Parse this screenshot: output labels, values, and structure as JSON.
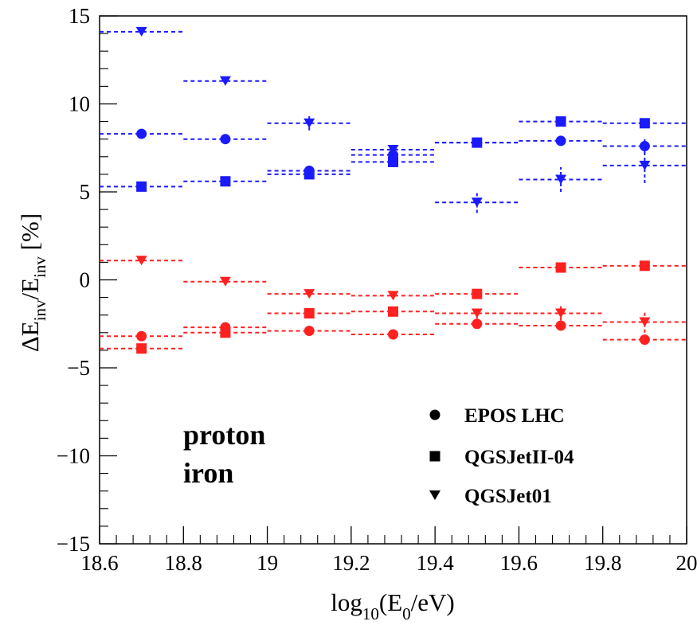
{
  "chart_data": {
    "type": "scatter",
    "title": "",
    "xlabel": {
      "main": "log",
      "sub1": "10",
      "mid": "(E",
      "sub2": "0",
      "end": "/eV)"
    },
    "ylabel": {
      "delta": "ΔE",
      "sub1": "inv",
      "slash": "/E",
      "sub2": "inv",
      "unit": " [%]"
    },
    "xlim": [
      18.6,
      20.0
    ],
    "ylim": [
      -15,
      15
    ],
    "x_ticks": [
      18.6,
      18.8,
      19.0,
      19.2,
      19.4,
      19.6,
      19.8,
      20.0
    ],
    "x_tick_labels": [
      "18.6",
      "18.8",
      "19",
      "19.2",
      "19.4",
      "19.6",
      "19.8",
      "20"
    ],
    "y_ticks": [
      -15,
      -10,
      -5,
      0,
      5,
      10,
      15
    ],
    "y_tick_labels": [
      "−15",
      "−10",
      "−5",
      "0",
      "5",
      "10",
      "15"
    ],
    "grid": false,
    "legend": {
      "placement": "bottom-right",
      "entries": [
        {
          "label": "EPOS LHC",
          "marker": "circle"
        },
        {
          "label": "QGSJetII-04",
          "marker": "square"
        },
        {
          "label": "QGSJet01",
          "marker": "triangle-down"
        }
      ]
    },
    "group_labels": [
      {
        "text": "proton",
        "color": "#1a1aff"
      },
      {
        "text": "iron",
        "color": "#ff2020"
      }
    ],
    "colors": {
      "proton": "#1a1aff",
      "iron": "#ff2020"
    },
    "bin_edges": [
      [
        18.6,
        18.8
      ],
      [
        18.8,
        19.0
      ],
      [
        19.0,
        19.2
      ],
      [
        19.2,
        19.4
      ],
      [
        19.4,
        19.6
      ],
      [
        19.6,
        19.8
      ],
      [
        19.8,
        20.0
      ]
    ],
    "x": [
      18.7,
      18.9,
      19.1,
      19.3,
      19.5,
      19.7,
      19.9
    ],
    "series": [
      {
        "primary": "proton",
        "model": "EPOS LHC",
        "marker": "circle",
        "values": [
          8.3,
          8.0,
          6.2,
          7.1,
          7.8,
          7.9,
          7.6
        ],
        "errors": [
          0.2,
          0.2,
          0.2,
          0.2,
          0.2,
          0.2,
          0.4
        ]
      },
      {
        "primary": "proton",
        "model": "QGSJetII-04",
        "marker": "square",
        "values": [
          5.3,
          5.6,
          6.0,
          6.7,
          7.8,
          9.0,
          8.9
        ],
        "errors": [
          0.2,
          0.2,
          0.2,
          0.3,
          0.2,
          0.2,
          0.2
        ]
      },
      {
        "primary": "proton",
        "model": "QGSJet01",
        "marker": "triangle-down",
        "values": [
          14.1,
          11.3,
          8.9,
          7.4,
          4.4,
          5.7,
          6.5
        ],
        "errors": [
          0.2,
          0.2,
          0.4,
          0.3,
          0.6,
          0.7,
          1.0
        ]
      },
      {
        "primary": "iron",
        "model": "EPOS LHC",
        "marker": "circle",
        "values": [
          -3.2,
          -2.7,
          -2.9,
          -3.1,
          -2.5,
          -2.6,
          -3.4
        ],
        "errors": [
          0.2,
          0.2,
          0.2,
          0.2,
          0.2,
          0.2,
          0.2
        ]
      },
      {
        "primary": "iron",
        "model": "QGSJetII-04",
        "marker": "square",
        "values": [
          -3.9,
          -3.0,
          -1.9,
          -1.8,
          -0.8,
          0.7,
          0.8
        ],
        "errors": [
          0.2,
          0.2,
          0.2,
          0.2,
          0.2,
          0.2,
          0.2
        ]
      },
      {
        "primary": "iron",
        "model": "QGSJet01",
        "marker": "triangle-down",
        "values": [
          1.1,
          -0.1,
          -0.8,
          -0.9,
          -1.9,
          -1.9,
          -2.4
        ],
        "errors": [
          0.2,
          0.2,
          0.2,
          0.2,
          0.3,
          0.4,
          0.6
        ]
      }
    ]
  }
}
